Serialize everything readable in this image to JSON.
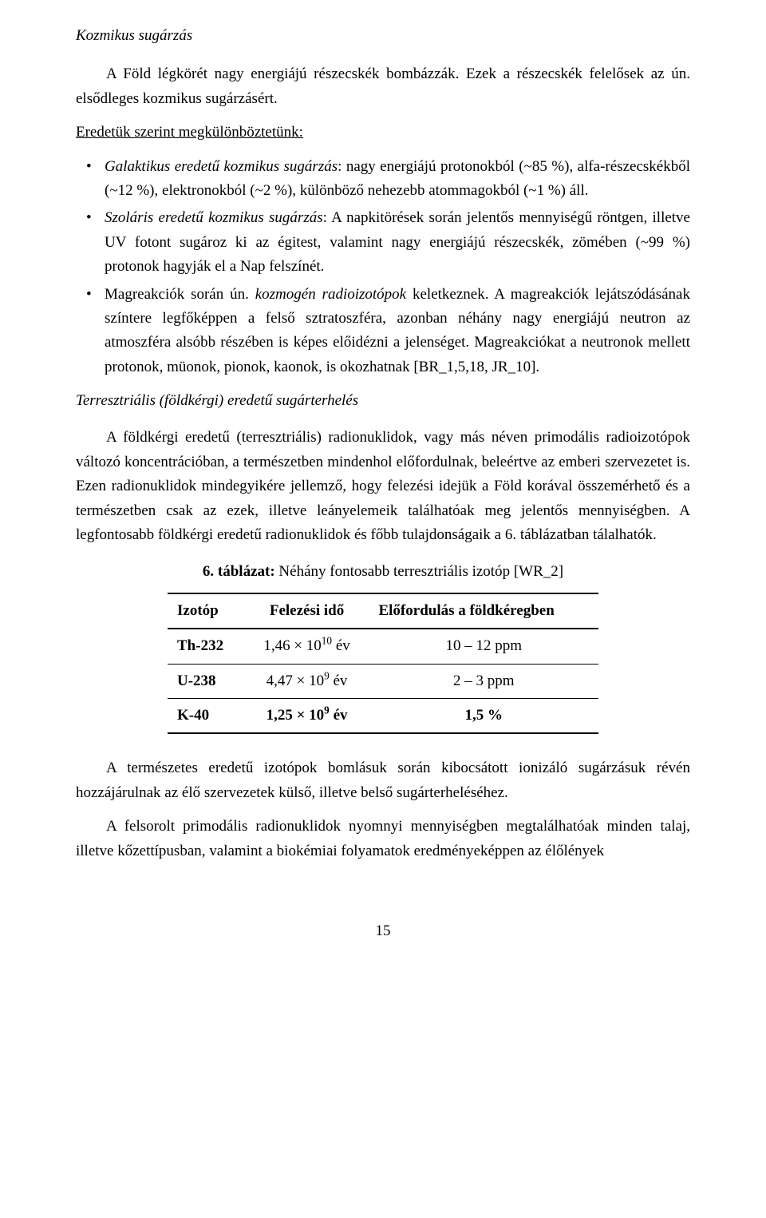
{
  "heading1": "Kozmikus sugárzás",
  "para1": "A Föld légkörét nagy energiájú részecskék bombázzák. Ezek a részecskék felelősek az ún. elsődleges kozmikus sugárzásért.",
  "lead_underline": "Eredetük szerint megkülönböztetünk:",
  "bullets": [
    {
      "prefix_italic": "Galaktikus eredetű kozmikus sugárzás",
      "rest": ": nagy energiájú protonokból (~85 %), alfa-részecskékből (~12 %), elektronokból (~2 %), különböző nehezebb atommagokból (~1 %) áll."
    },
    {
      "prefix_italic": "Szoláris eredetű kozmikus sugárzás",
      "rest": ": A napkitörések során jelentős mennyiségű röntgen, illetve UV fotont sugároz ki az égitest, valamint nagy energiájú részecskék, zömében (~99 %) protonok hagyják el a Nap felszínét."
    },
    {
      "pre": "Magreakciók során ún. ",
      "mid_italic": "kozmogén radioizotópok",
      "post": " keletkeznek. A magreakciók lejátszódásának színtere legfőképpen a felső sztratoszféra, azonban néhány nagy energiájú neutron az atmoszféra alsóbb részében is képes előidézni a jelenséget. Magreakciókat a neutronok mellett protonok, müonok, pionok, kaonok, is okozhatnak [BR_1,5,18, JR_10]."
    }
  ],
  "subhead_italic": "Terresztriális (földkérgi) eredetű sugárterhelés",
  "para2": "A földkérgi eredetű (terresztriális) radionuklidok, vagy más néven primodális radioizotópok változó koncentrációban, a természetben mindenhol előfordulnak, beleértve az emberi szervezetet is. Ezen radionuklidok mindegyikére jellemző, hogy felezési idejük a Föld korával összemérhető és a természetben csak az ezek, illetve leányelemeik találhatóak meg jelentős mennyiségben. A legfontosabb földkérgi eredetű radionuklidok és főbb tulajdonságaik a 6. táblázatban tálalhatók.",
  "table": {
    "caption_bold": "6. táblázat:",
    "caption_rest": " Néhány fontosabb terresztriális izotóp [WR_2]",
    "columns": [
      "Izotóp",
      "Felezési idő",
      "Előfordulás a földkéregben"
    ],
    "rows": [
      {
        "isotope": "Th-232",
        "halflife_base": "1,46 × 10",
        "halflife_exp": "10",
        "halflife_unit": " év",
        "occurrence": "10 – 12 ppm"
      },
      {
        "isotope": "U-238",
        "halflife_base": "4,47 × 10",
        "halflife_exp": "9",
        "halflife_unit": " év",
        "occurrence": "2 – 3 ppm"
      },
      {
        "isotope": "K-40",
        "halflife_base": "1,25 × 10",
        "halflife_exp": "9",
        "halflife_unit": " év",
        "occurrence": "1,5 %"
      }
    ]
  },
  "para3": "A természetes eredetű izotópok bomlásuk során kibocsátott ionizáló sugárzásuk révén hozzájárulnak az élő szervezetek külső, illetve belső sugárterheléséhez.",
  "para4": "A felsorolt primodális radionuklidok nyomnyi mennyiségben megtalálhatóak minden talaj, illetve kőzettípusban, valamint a biokémiai folyamatok eredményeképpen az élőlények",
  "page_number": "15"
}
